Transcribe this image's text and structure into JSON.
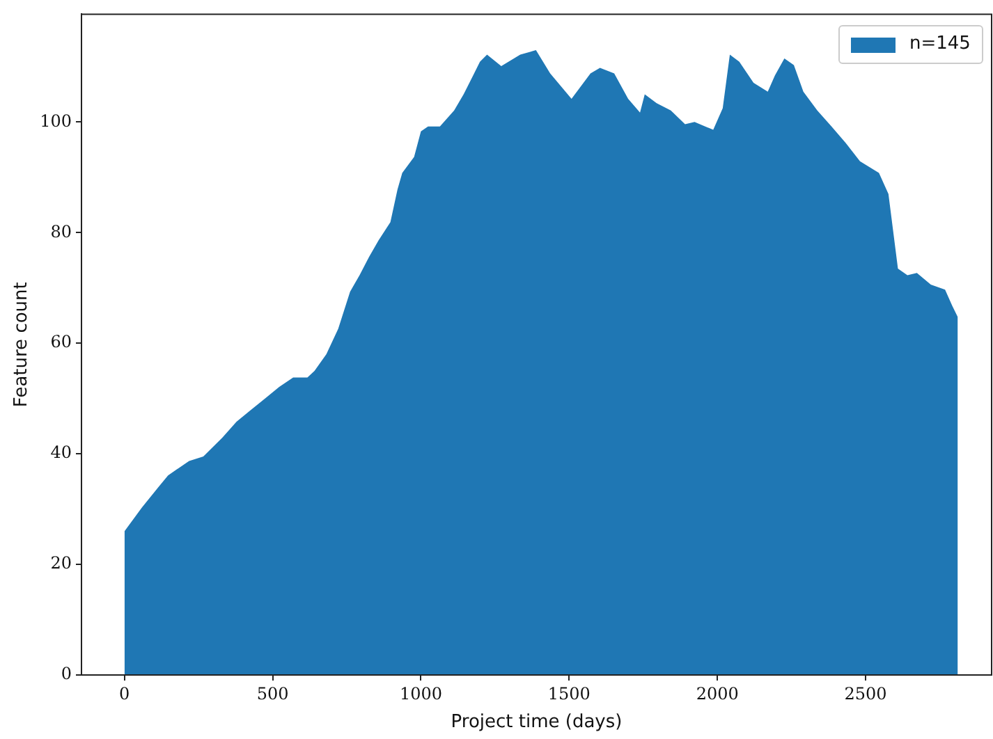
{
  "chart_data": {
    "type": "area",
    "xlabel": "Project time (days)",
    "ylabel": "Feature count",
    "xlim": [
      -145,
      2925
    ],
    "xticks": [
      0,
      500,
      1000,
      1500,
      2000,
      2500
    ],
    "ylim": [
      0,
      119.5
    ],
    "yticks": [
      0,
      20,
      40,
      60,
      80,
      100
    ],
    "grid": false,
    "legend": "top right",
    "series": [
      {
        "name": "n=145",
        "color": "#1f77b4",
        "x": [
          0,
          59,
          115,
          147,
          218,
          266,
          298,
          330,
          378,
          426,
          474,
          522,
          569,
          617,
          641,
          681,
          721,
          761,
          793,
          825,
          857,
          897,
          921,
          937,
          977,
          1000,
          1024,
          1064,
          1112,
          1144,
          1176,
          1199,
          1223,
          1271,
          1335,
          1388,
          1436,
          1508,
          1572,
          1604,
          1652,
          1699,
          1739,
          1755,
          1795,
          1843,
          1891,
          1923,
          1986,
          2018,
          2042,
          2074,
          2122,
          2170,
          2194,
          2226,
          2258,
          2290,
          2337,
          2385,
          2433,
          2481,
          2545,
          2577,
          2609,
          2641,
          2673,
          2720,
          2768,
          2792,
          2811
        ],
        "values": [
          26.0,
          30.3,
          34.0,
          36.1,
          38.7,
          39.5,
          41.2,
          42.9,
          45.8,
          47.9,
          50.0,
          52.1,
          53.8,
          53.8,
          55.0,
          58.0,
          62.6,
          69.3,
          72.3,
          75.6,
          78.6,
          81.9,
          87.8,
          90.8,
          93.7,
          98.3,
          99.2,
          99.2,
          102.1,
          105.0,
          108.4,
          110.9,
          112.2,
          110.1,
          112.2,
          113.0,
          108.8,
          104.2,
          108.8,
          109.8,
          108.8,
          104.2,
          101.7,
          105.0,
          103.4,
          102.1,
          99.6,
          100.0,
          98.6,
          102.5,
          112.2,
          110.9,
          107.1,
          105.5,
          108.4,
          111.5,
          110.3,
          105.5,
          102.1,
          99.2,
          96.2,
          92.9,
          90.8,
          87.0,
          73.5,
          72.3,
          72.7,
          70.6,
          69.7,
          66.8,
          64.7
        ]
      }
    ]
  }
}
